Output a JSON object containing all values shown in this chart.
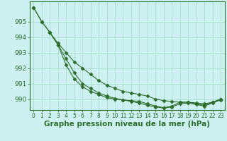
{
  "background_color": "#cdf0f0",
  "grid_color": "#aaddcc",
  "line_color": "#2d6e2d",
  "xlabel": "Graphe pression niveau de la mer (hPa)",
  "xlabel_fontsize": 7.5,
  "xtick_fontsize": 5.5,
  "ytick_fontsize": 6.5,
  "ylim": [
    989.3,
    996.3
  ],
  "xlim": [
    -0.5,
    23.5
  ],
  "yticks": [
    990,
    991,
    992,
    993,
    994,
    995
  ],
  "xticks": [
    0,
    1,
    2,
    3,
    4,
    5,
    6,
    7,
    8,
    9,
    10,
    11,
    12,
    13,
    14,
    15,
    16,
    17,
    18,
    19,
    20,
    21,
    22,
    23
  ],
  "line1_x": [
    0,
    1,
    2,
    3,
    4,
    5,
    6,
    7,
    8,
    9,
    10,
    11,
    12,
    13,
    14,
    15,
    16,
    17,
    18,
    19,
    20,
    21,
    22,
    23
  ],
  "line1_y": [
    995.9,
    995.0,
    994.3,
    993.6,
    993.0,
    992.4,
    992.0,
    991.6,
    991.2,
    990.9,
    990.7,
    990.5,
    990.4,
    990.3,
    990.2,
    990.0,
    989.9,
    989.85,
    989.8,
    989.8,
    989.75,
    989.7,
    989.8,
    990.0
  ],
  "line2_x": [
    0,
    1,
    2,
    3,
    4,
    5,
    6,
    7,
    8,
    9,
    10,
    11,
    12,
    13,
    14,
    15,
    16,
    17,
    18,
    19,
    20,
    21,
    22,
    23
  ],
  "line2_y": [
    995.9,
    995.0,
    994.3,
    993.5,
    992.2,
    991.3,
    990.8,
    990.5,
    990.3,
    990.1,
    990.0,
    989.95,
    989.9,
    989.85,
    989.7,
    989.55,
    989.45,
    989.55,
    989.8,
    989.8,
    989.7,
    989.6,
    989.8,
    990.0
  ],
  "line3_x": [
    2,
    3,
    4,
    5,
    6,
    7,
    8,
    9,
    10,
    11,
    12,
    13,
    14,
    15,
    16,
    17,
    18,
    19,
    20,
    21,
    22,
    23
  ],
  "line3_y": [
    994.3,
    993.5,
    992.6,
    991.7,
    991.0,
    990.7,
    990.4,
    990.2,
    990.05,
    989.95,
    989.85,
    989.75,
    989.6,
    989.5,
    989.42,
    989.5,
    989.7,
    989.75,
    989.65,
    989.55,
    989.75,
    989.95
  ]
}
